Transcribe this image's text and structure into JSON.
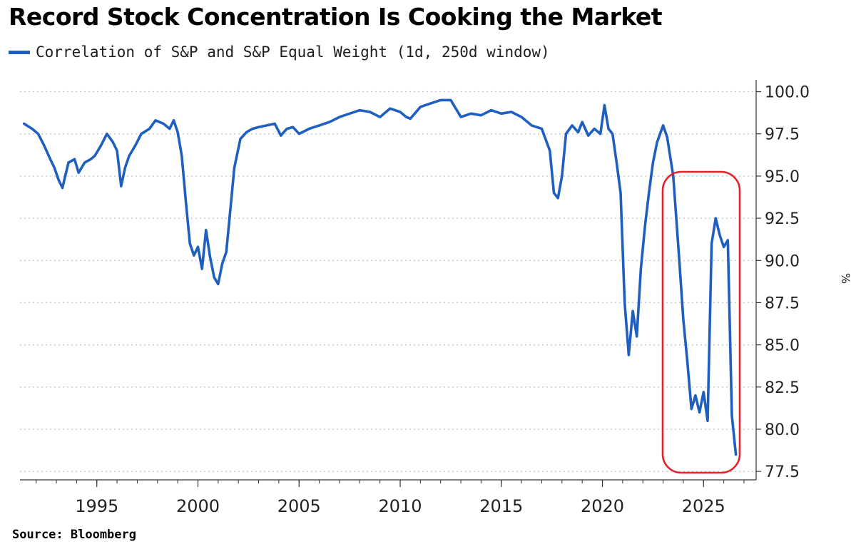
{
  "title": "Record Stock Concentration Is Cooking the Market",
  "source": "Source: Bloomberg",
  "colors": {
    "series": "#1f5fbf",
    "highlight": "#e3222a",
    "grid": "#c8c8c8",
    "axis": "#333333"
  },
  "chart_data": {
    "type": "line",
    "title": "Record Stock Concentration Is Cooking the Market",
    "xlabel": "",
    "ylabel": "%",
    "xlim": [
      1991.2,
      2027.6
    ],
    "ylim": [
      77.0,
      100.7
    ],
    "x_ticks": [
      1995,
      2000,
      2005,
      2010,
      2015,
      2020,
      2025
    ],
    "x_tick_labels": [
      "1995",
      "2000",
      "2005",
      "2010",
      "2015",
      "2020",
      "2025"
    ],
    "y_ticks": [
      77.5,
      80.0,
      82.5,
      85.0,
      87.5,
      90.0,
      92.5,
      95.0,
      97.5,
      100.0
    ],
    "y_tick_labels": [
      "77.5",
      "80.0",
      "82.5",
      "85.0",
      "87.5",
      "90.0",
      "92.5",
      "95.0",
      "97.5",
      "100.0"
    ],
    "grid": true,
    "legend": "top-left",
    "series": [
      {
        "name": "Correlation of S&P and S&P Equal Weight (1d, 250d window)",
        "x": [
          1991.4,
          1991.8,
          1992.1,
          1992.4,
          1992.7,
          1992.9,
          1993.1,
          1993.3,
          1993.6,
          1993.9,
          1994.1,
          1994.4,
          1994.7,
          1994.9,
          1995.2,
          1995.5,
          1995.8,
          1996.0,
          1996.2,
          1996.4,
          1996.6,
          1996.9,
          1997.2,
          1997.6,
          1997.9,
          1998.3,
          1998.6,
          1998.8,
          1999.0,
          1999.2,
          1999.4,
          1999.6,
          1999.8,
          2000.0,
          2000.2,
          2000.4,
          2000.6,
          2000.8,
          2001.0,
          2001.2,
          2001.4,
          2001.6,
          2001.8,
          2002.1,
          2002.4,
          2002.7,
          2003.0,
          2003.4,
          2003.8,
          2004.1,
          2004.4,
          2004.7,
          2005.0,
          2005.5,
          2006.0,
          2006.5,
          2007.0,
          2007.5,
          2008.0,
          2008.5,
          2009.0,
          2009.5,
          2010.0,
          2010.3,
          2010.5,
          2011.0,
          2011.5,
          2012.0,
          2012.5,
          2013.0,
          2013.5,
          2014.0,
          2014.5,
          2015.0,
          2015.5,
          2016.0,
          2016.5,
          2017.0,
          2017.4,
          2017.6,
          2017.8,
          2018.0,
          2018.2,
          2018.5,
          2018.8,
          2019.0,
          2019.3,
          2019.6,
          2019.9,
          2020.1,
          2020.3,
          2020.5,
          2020.7,
          2020.9,
          2021.1,
          2021.3,
          2021.5,
          2021.7,
          2021.9,
          2022.1,
          2022.3,
          2022.5,
          2022.7,
          2023.0,
          2023.2,
          2023.5,
          2023.8,
          2024.0,
          2024.2,
          2024.4,
          2024.6,
          2024.8,
          2025.0,
          2025.2,
          2025.4,
          2025.6,
          2025.8,
          2026.0,
          2026.2,
          2026.4,
          2026.6
        ],
        "y": [
          98.1,
          97.8,
          97.5,
          96.8,
          96.0,
          95.5,
          94.8,
          94.3,
          95.8,
          96.0,
          95.2,
          95.8,
          96.0,
          96.2,
          96.8,
          97.5,
          97.0,
          96.5,
          94.4,
          95.5,
          96.2,
          96.8,
          97.5,
          97.8,
          98.3,
          98.1,
          97.8,
          98.3,
          97.6,
          96.2,
          93.5,
          91.0,
          90.3,
          90.8,
          89.5,
          91.8,
          90.2,
          89.0,
          88.6,
          89.8,
          90.5,
          93.0,
          95.5,
          97.2,
          97.6,
          97.8,
          97.9,
          98.0,
          98.1,
          97.4,
          97.8,
          97.9,
          97.5,
          97.8,
          98.0,
          98.2,
          98.5,
          98.7,
          98.9,
          98.8,
          98.5,
          99.0,
          98.8,
          98.5,
          98.4,
          99.1,
          99.3,
          99.5,
          99.5,
          98.5,
          98.7,
          98.6,
          98.9,
          98.7,
          98.8,
          98.5,
          98.0,
          97.8,
          96.5,
          94.0,
          93.7,
          95.0,
          97.5,
          98.0,
          97.6,
          98.2,
          97.4,
          97.8,
          97.5,
          99.2,
          97.8,
          97.5,
          95.8,
          94.0,
          87.5,
          84.4,
          87.0,
          85.5,
          89.5,
          92.0,
          94.0,
          95.8,
          97.0,
          98.0,
          97.3,
          95.0,
          90.0,
          86.5,
          84.0,
          81.2,
          82.0,
          81.0,
          82.2,
          80.5,
          91.0,
          92.5,
          91.5,
          90.8,
          91.2,
          80.8,
          78.5
        ]
      }
    ]
  }
}
